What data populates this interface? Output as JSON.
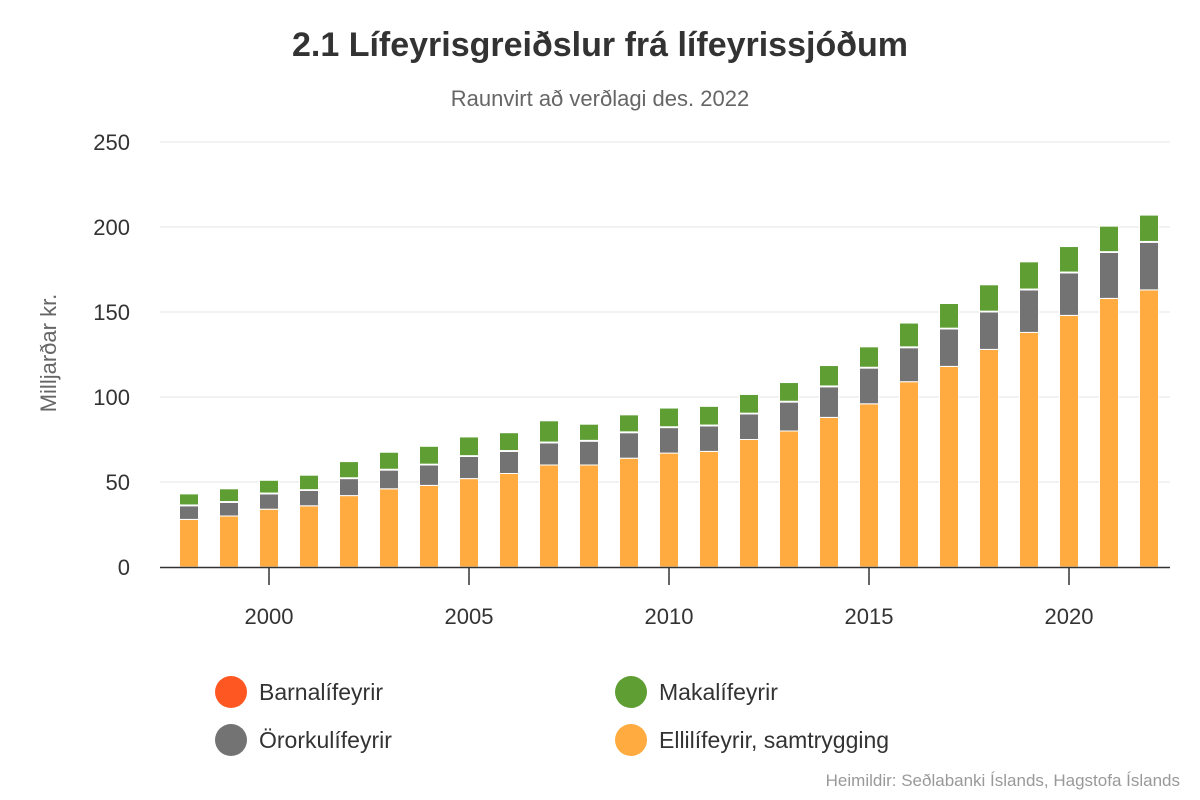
{
  "chart_data": {
    "type": "bar",
    "stacked": true,
    "title": "2.1 Lífeyrisgreiðslur frá lífeyrissjóðum",
    "subtitle": "Raunvirt að verðlagi des. 2022",
    "ylabel": "Milljarðar kr.",
    "xlabel": "",
    "ylim": [
      0,
      250
    ],
    "yticks": [
      "0",
      "50",
      "100",
      "150",
      "200",
      "250"
    ],
    "xticks": [
      "2000",
      "2005",
      "2010",
      "2015",
      "2020"
    ],
    "x": [
      1998,
      1999,
      2000,
      2001,
      2002,
      2003,
      2004,
      2005,
      2006,
      2007,
      2008,
      2009,
      2010,
      2011,
      2012,
      2013,
      2014,
      2015,
      2016,
      2017,
      2018,
      2019,
      2020,
      2021,
      2022
    ],
    "grid": true,
    "legend_position": "bottom",
    "series": [
      {
        "name": "Ellilífeyrir, samtrygging",
        "color": "#ffab40",
        "values": [
          28,
          30,
          34,
          36,
          42,
          46,
          48,
          52,
          55,
          60,
          60,
          64,
          67,
          68,
          75,
          80,
          88,
          96,
          109,
          118,
          128,
          138,
          148,
          158,
          163
        ]
      },
      {
        "name": "Örorkulífeyrir",
        "color": "#737373",
        "values": [
          8,
          8,
          9,
          9,
          10,
          11,
          12,
          13,
          13,
          13,
          14,
          15,
          15,
          15,
          15,
          17,
          18,
          21,
          20,
          22,
          22,
          25,
          25,
          27,
          28
        ]
      },
      {
        "name": "Barnalífeyrir",
        "color": "#ff5722",
        "values": [
          0.5,
          0.5,
          0.5,
          0.5,
          0.5,
          0.5,
          0.5,
          0.5,
          0.5,
          0.5,
          0.5,
          0.5,
          0.5,
          0.5,
          0.5,
          0.5,
          0.5,
          0.5,
          0.5,
          0.5,
          0.5,
          0.5,
          0.5,
          0.5,
          0.5
        ]
      },
      {
        "name": "Makalífeyrir",
        "color": "#5e9e33",
        "values": [
          6.5,
          7.5,
          7.5,
          8.5,
          9.5,
          10,
          10.5,
          11,
          10.5,
          12.5,
          9.5,
          10,
          11,
          11,
          11,
          11,
          12,
          12,
          14,
          14.5,
          15.5,
          16,
          15,
          15,
          15.5
        ]
      }
    ],
    "legend": [
      {
        "name": "Barnalífeyrir",
        "color": "#ff5722"
      },
      {
        "name": "Makalífeyrir",
        "color": "#5e9e33"
      },
      {
        "name": "Örorkulífeyrir",
        "color": "#737373"
      },
      {
        "name": "Ellilífeyrir, samtrygging",
        "color": "#ffab40"
      }
    ],
    "credits": "Heimildir: Seðlabanki Íslands, Hagstofa Íslands"
  }
}
